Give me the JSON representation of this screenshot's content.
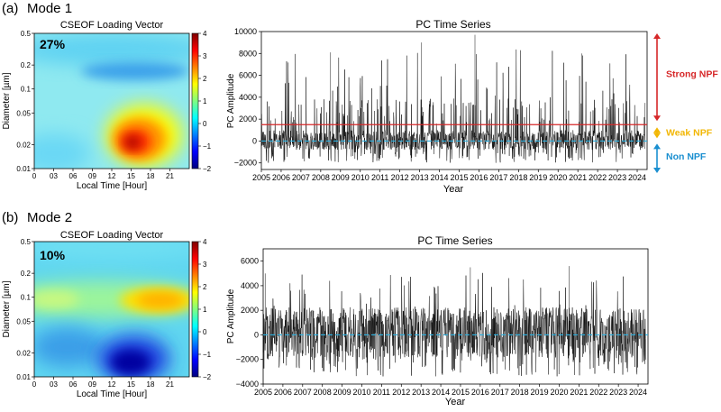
{
  "panels": [
    {
      "panel_label": "(a)",
      "mode_label": "Mode 1",
      "heatmap": {
        "title": "CSEOF Loading Vector",
        "percent": "27%",
        "xlabel": "Local Time [Hour]",
        "ylabel": "Diameter [µm]",
        "xticks": [
          "0",
          "03",
          "06",
          "09",
          "12",
          "15",
          "18",
          "21"
        ],
        "yticks": [
          "0.01",
          "0.02",
          "0.05",
          "0.1",
          "0.2",
          "0.5"
        ],
        "colorbar_ticks": [
          "−2",
          "−1",
          "0",
          "1",
          "2",
          "3",
          "4"
        ]
      },
      "timeseries": {
        "title": "PC Time Series",
        "xlabel": "Year",
        "ylabel": "PC Amplitude",
        "yticks": [
          "−2000",
          "0",
          "2000",
          "4000",
          "6000",
          "8000",
          "10000"
        ],
        "xticks": [
          "2005",
          "2006",
          "2007",
          "2008",
          "2009",
          "2010",
          "2011",
          "2012",
          "2013",
          "2014",
          "2015",
          "2016",
          "2017",
          "2018",
          "2019",
          "2020",
          "2021",
          "2022",
          "2023",
          "2024"
        ]
      },
      "annotations": [
        {
          "label": "Strong NPF",
          "color": "#d62728"
        },
        {
          "label": "Weak NPF",
          "color": "#f2b705"
        },
        {
          "label": "Non NPF",
          "color": "#1a8fd0"
        }
      ]
    },
    {
      "panel_label": "(b)",
      "mode_label": "Mode 2",
      "heatmap": {
        "title": "CSEOF Loading Vector",
        "percent": "10%",
        "xlabel": "Local Time [Hour]",
        "ylabel": "Diameter [µm]",
        "xticks": [
          "0",
          "03",
          "06",
          "09",
          "12",
          "15",
          "18",
          "21"
        ],
        "yticks": [
          "0.01",
          "0.02",
          "0.05",
          "0.1",
          "0.2",
          "0.5"
        ],
        "colorbar_ticks": [
          "−2",
          "−1",
          "0",
          "1",
          "2",
          "3",
          "4"
        ]
      },
      "timeseries": {
        "title": "PC Time Series",
        "xlabel": "Year",
        "ylabel": "PC Amplitude",
        "yticks": [
          "−4000",
          "−2000",
          "0",
          "2000",
          "4000",
          "6000"
        ],
        "xticks": [
          "2005",
          "2006",
          "2007",
          "2008",
          "2009",
          "2010",
          "2011",
          "2012",
          "2013",
          "2014",
          "2015",
          "2016",
          "2017",
          "2018",
          "2019",
          "2020",
          "2021",
          "2022",
          "2023",
          "2024"
        ]
      }
    }
  ],
  "chart_data": [
    {
      "type": "heatmap",
      "title": "CSEOF Loading Vector",
      "xlabel": "Local Time [Hour]",
      "ylabel": "Diameter [µm]",
      "xlim": [
        0,
        24
      ],
      "ylim": [
        0.01,
        0.5
      ],
      "yscale": "log",
      "colorbar_range": [
        -2,
        4
      ],
      "features": [
        {
          "hour": 15,
          "diameter": 0.025,
          "value": 3.7
        },
        {
          "hour": 16,
          "diameter": 0.04,
          "value": 2.5
        },
        {
          "hour": 14,
          "diameter": 0.15,
          "value": -0.7
        },
        {
          "hour": 0,
          "diameter": 0.3,
          "value": -0.2
        }
      ]
    },
    {
      "type": "line",
      "title": "PC Time Series",
      "xlabel": "Year",
      "ylabel": "PC Amplitude",
      "xlim": [
        2005,
        2024.5
      ],
      "ylim": [
        -2600,
        10000
      ],
      "hlines": [
        {
          "y": 1500,
          "color": "#d62728"
        },
        {
          "y": 0,
          "color": "#2ab0e0",
          "style": "dashed"
        }
      ],
      "approx_range": [
        -2000,
        9700
      ],
      "notable_peaks": [
        {
          "x": 2008.5,
          "y": 8100
        },
        {
          "x": 2013.1,
          "y": 9000
        },
        {
          "x": 2015.8,
          "y": 9700
        },
        {
          "x": 2021.2,
          "y": 8000
        }
      ]
    },
    {
      "type": "heatmap",
      "title": "CSEOF Loading Vector",
      "xlabel": "Local Time [Hour]",
      "ylabel": "Diameter [µm]",
      "xlim": [
        0,
        24
      ],
      "ylim": [
        0.01,
        0.5
      ],
      "yscale": "log",
      "colorbar_range": [
        -2,
        4
      ],
      "features": [
        {
          "hour": 18,
          "diameter": 0.1,
          "value": 2.3
        },
        {
          "hour": 15,
          "diameter": 0.015,
          "value": -1.9
        },
        {
          "hour": 3,
          "diameter": 0.1,
          "value": 1.0
        },
        {
          "hour": 0,
          "diameter": 0.03,
          "value": -0.5
        }
      ]
    },
    {
      "type": "line",
      "title": "PC Time Series",
      "xlabel": "Year",
      "ylabel": "PC Amplitude",
      "xlim": [
        2005,
        2024.5
      ],
      "ylim": [
        -4000,
        7000
      ],
      "hlines": [
        {
          "y": 0,
          "color": "#2ab0e0",
          "style": "dashed"
        }
      ],
      "approx_range": [
        -3400,
        5600
      ],
      "notable_peaks": [
        {
          "x": 2015.5,
          "y": 5500
        },
        {
          "x": 2020.5,
          "y": 5600
        },
        {
          "x": 2005.1,
          "y": 5000
        }
      ]
    }
  ]
}
